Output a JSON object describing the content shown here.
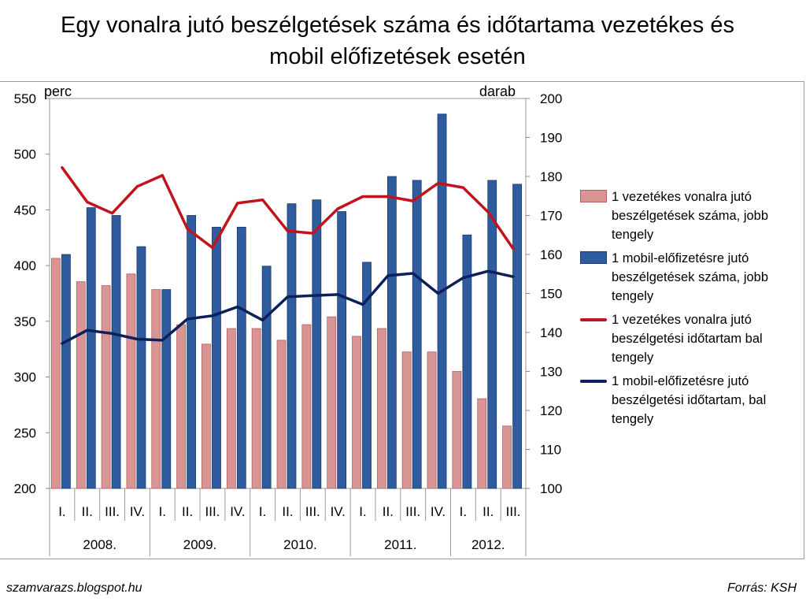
{
  "title_line1": "Egy vonalra jutó beszélgetések száma és időtartama vezetékes és",
  "title_line2": "mobil előfizetések esetén",
  "footer": {
    "left": "szamvarazs.blogspot.hu",
    "right": "Forrás: KSH"
  },
  "colors": {
    "bar_fixed": "#d99594",
    "bar_fixed_border": "#b06060",
    "bar_mobile": "#2e5c9e",
    "bar_mobile_border": "#1c3a6e",
    "line_fixed": "#c0141c",
    "line_mobile": "#0d1f5c"
  },
  "chart_data": {
    "type": "bar+line",
    "left_axis": {
      "unit_label": "perc",
      "min": 200,
      "max": 550,
      "ticks": [
        "200",
        "250",
        "300",
        "350",
        "400",
        "450",
        "500",
        "550"
      ]
    },
    "right_axis": {
      "unit_label": "darab",
      "min": 100,
      "max": 200,
      "ticks": [
        "100",
        "110",
        "120",
        "130",
        "140",
        "150",
        "160",
        "170",
        "180",
        "190",
        "200"
      ]
    },
    "categories": [
      "I.",
      "II.",
      "III.",
      "IV.",
      "I.",
      "II.",
      "III.",
      "IV.",
      "I.",
      "II.",
      "III.",
      "IV.",
      "I.",
      "II.",
      "III.",
      "IV.",
      "I.",
      "II.",
      "III."
    ],
    "years": [
      {
        "label": "2008.",
        "count": 4
      },
      {
        "label": "2009.",
        "count": 4
      },
      {
        "label": "2010.",
        "count": 4
      },
      {
        "label": "2011.",
        "count": 4
      },
      {
        "label": "2012.",
        "count": 3
      }
    ],
    "series": [
      {
        "name": "1 vezetékes vonalra jutó beszélgetések száma, jobb tengely",
        "kind": "bar",
        "axis": "right",
        "color_key": "bar_fixed",
        "values": [
          159,
          153,
          152,
          155,
          151,
          142,
          137,
          141,
          141,
          138,
          142,
          144,
          139,
          141,
          135,
          135,
          130,
          123,
          116
        ]
      },
      {
        "name": "1 mobil-előfizetésre jutó beszélgetések száma, jobb tengely",
        "kind": "bar",
        "axis": "right",
        "color_key": "bar_mobile",
        "values": [
          160,
          172,
          170,
          162,
          151,
          170,
          167,
          167,
          157,
          173,
          174,
          171,
          158,
          180,
          179,
          196,
          165,
          179,
          178
        ]
      },
      {
        "name": "1 vezetékes vonalra jutó beszélgetési időtartam bal tengely",
        "kind": "line",
        "axis": "left",
        "color_key": "line_fixed",
        "values": [
          488,
          457,
          447,
          471,
          481,
          433,
          416,
          456,
          459,
          431,
          429,
          451,
          462,
          462,
          458,
          474,
          470,
          448,
          415
        ]
      },
      {
        "name": "1 mobil-előfizetésre jutó beszélgetési időtartam, bal tengely",
        "kind": "line",
        "axis": "left",
        "color_key": "line_mobile",
        "values": [
          330,
          342,
          339,
          334,
          333,
          352,
          355,
          363,
          351,
          372,
          373,
          374,
          365,
          391,
          393,
          375,
          389,
          395,
          390
        ]
      }
    ]
  }
}
